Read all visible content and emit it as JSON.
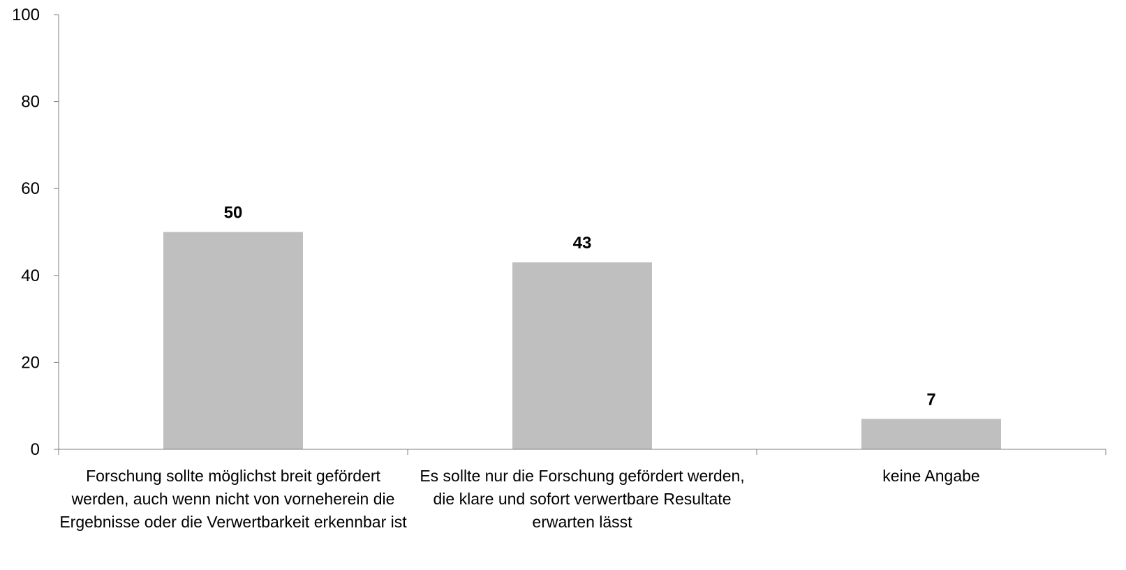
{
  "chart_data": {
    "type": "bar",
    "categories": [
      "Forschung sollte möglichst breit gefördert werden, auch wenn nicht von vorneherein die Ergebnisse oder die Verwertbarkeit erkennbar ist",
      "Es sollte nur die Forschung gefördert werden, die klare und sofort verwertbare Resultate erwarten lässt",
      "keine Angabe"
    ],
    "values": [
      50,
      43,
      7
    ],
    "data_labels": [
      "50",
      "43",
      "7"
    ],
    "title": "",
    "xlabel": "",
    "ylabel": "",
    "ylim": [
      0,
      100
    ],
    "yticks": [
      "0",
      "20",
      "40",
      "60",
      "80",
      "100"
    ],
    "grid": false,
    "legend": "none",
    "colors": {
      "bar": "#bfbfbf",
      "axis": "#7f7f7f"
    }
  }
}
